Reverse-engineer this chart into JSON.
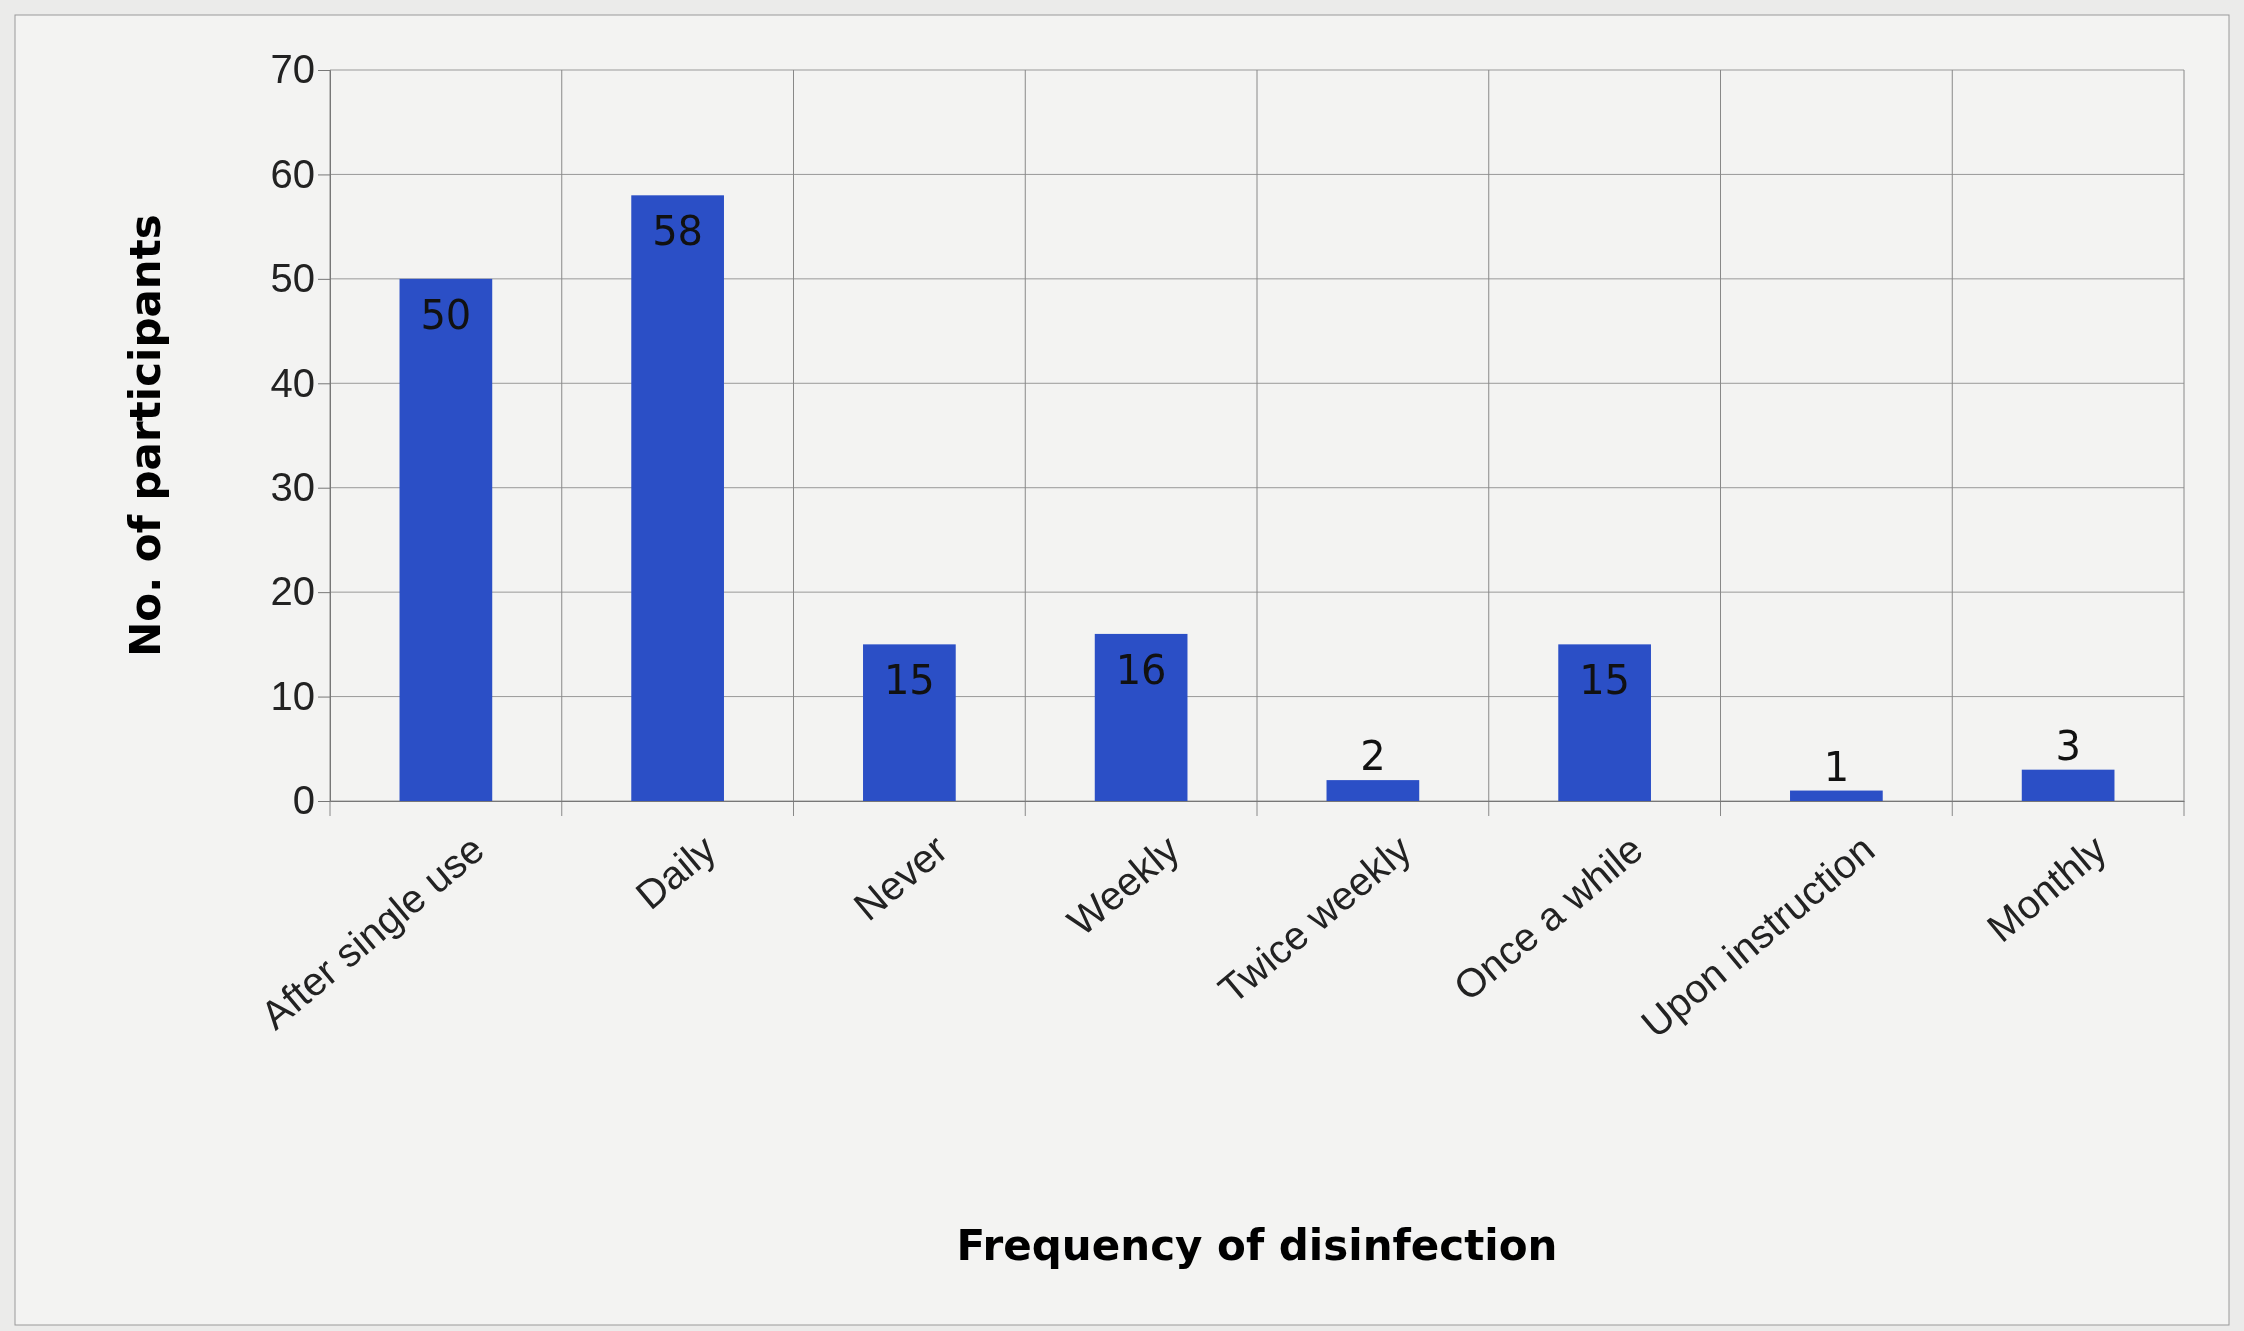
{
  "chart_data": {
    "type": "bar",
    "xlabel": "Frequency of disinfection",
    "ylabel": "No. of participants",
    "categories": [
      "After single use",
      "Daily",
      "Never",
      "Weekly",
      "Twice weekly",
      "Once a while",
      "Upon instruction",
      "Monthly"
    ],
    "values": [
      50,
      58,
      15,
      16,
      2,
      15,
      1,
      3
    ],
    "color": "#2b4fc6",
    "ylim": [
      0,
      70
    ],
    "yticks": [
      0,
      10,
      20,
      30,
      40,
      50,
      60,
      70
    ],
    "grid": true,
    "data_labels": true
  }
}
